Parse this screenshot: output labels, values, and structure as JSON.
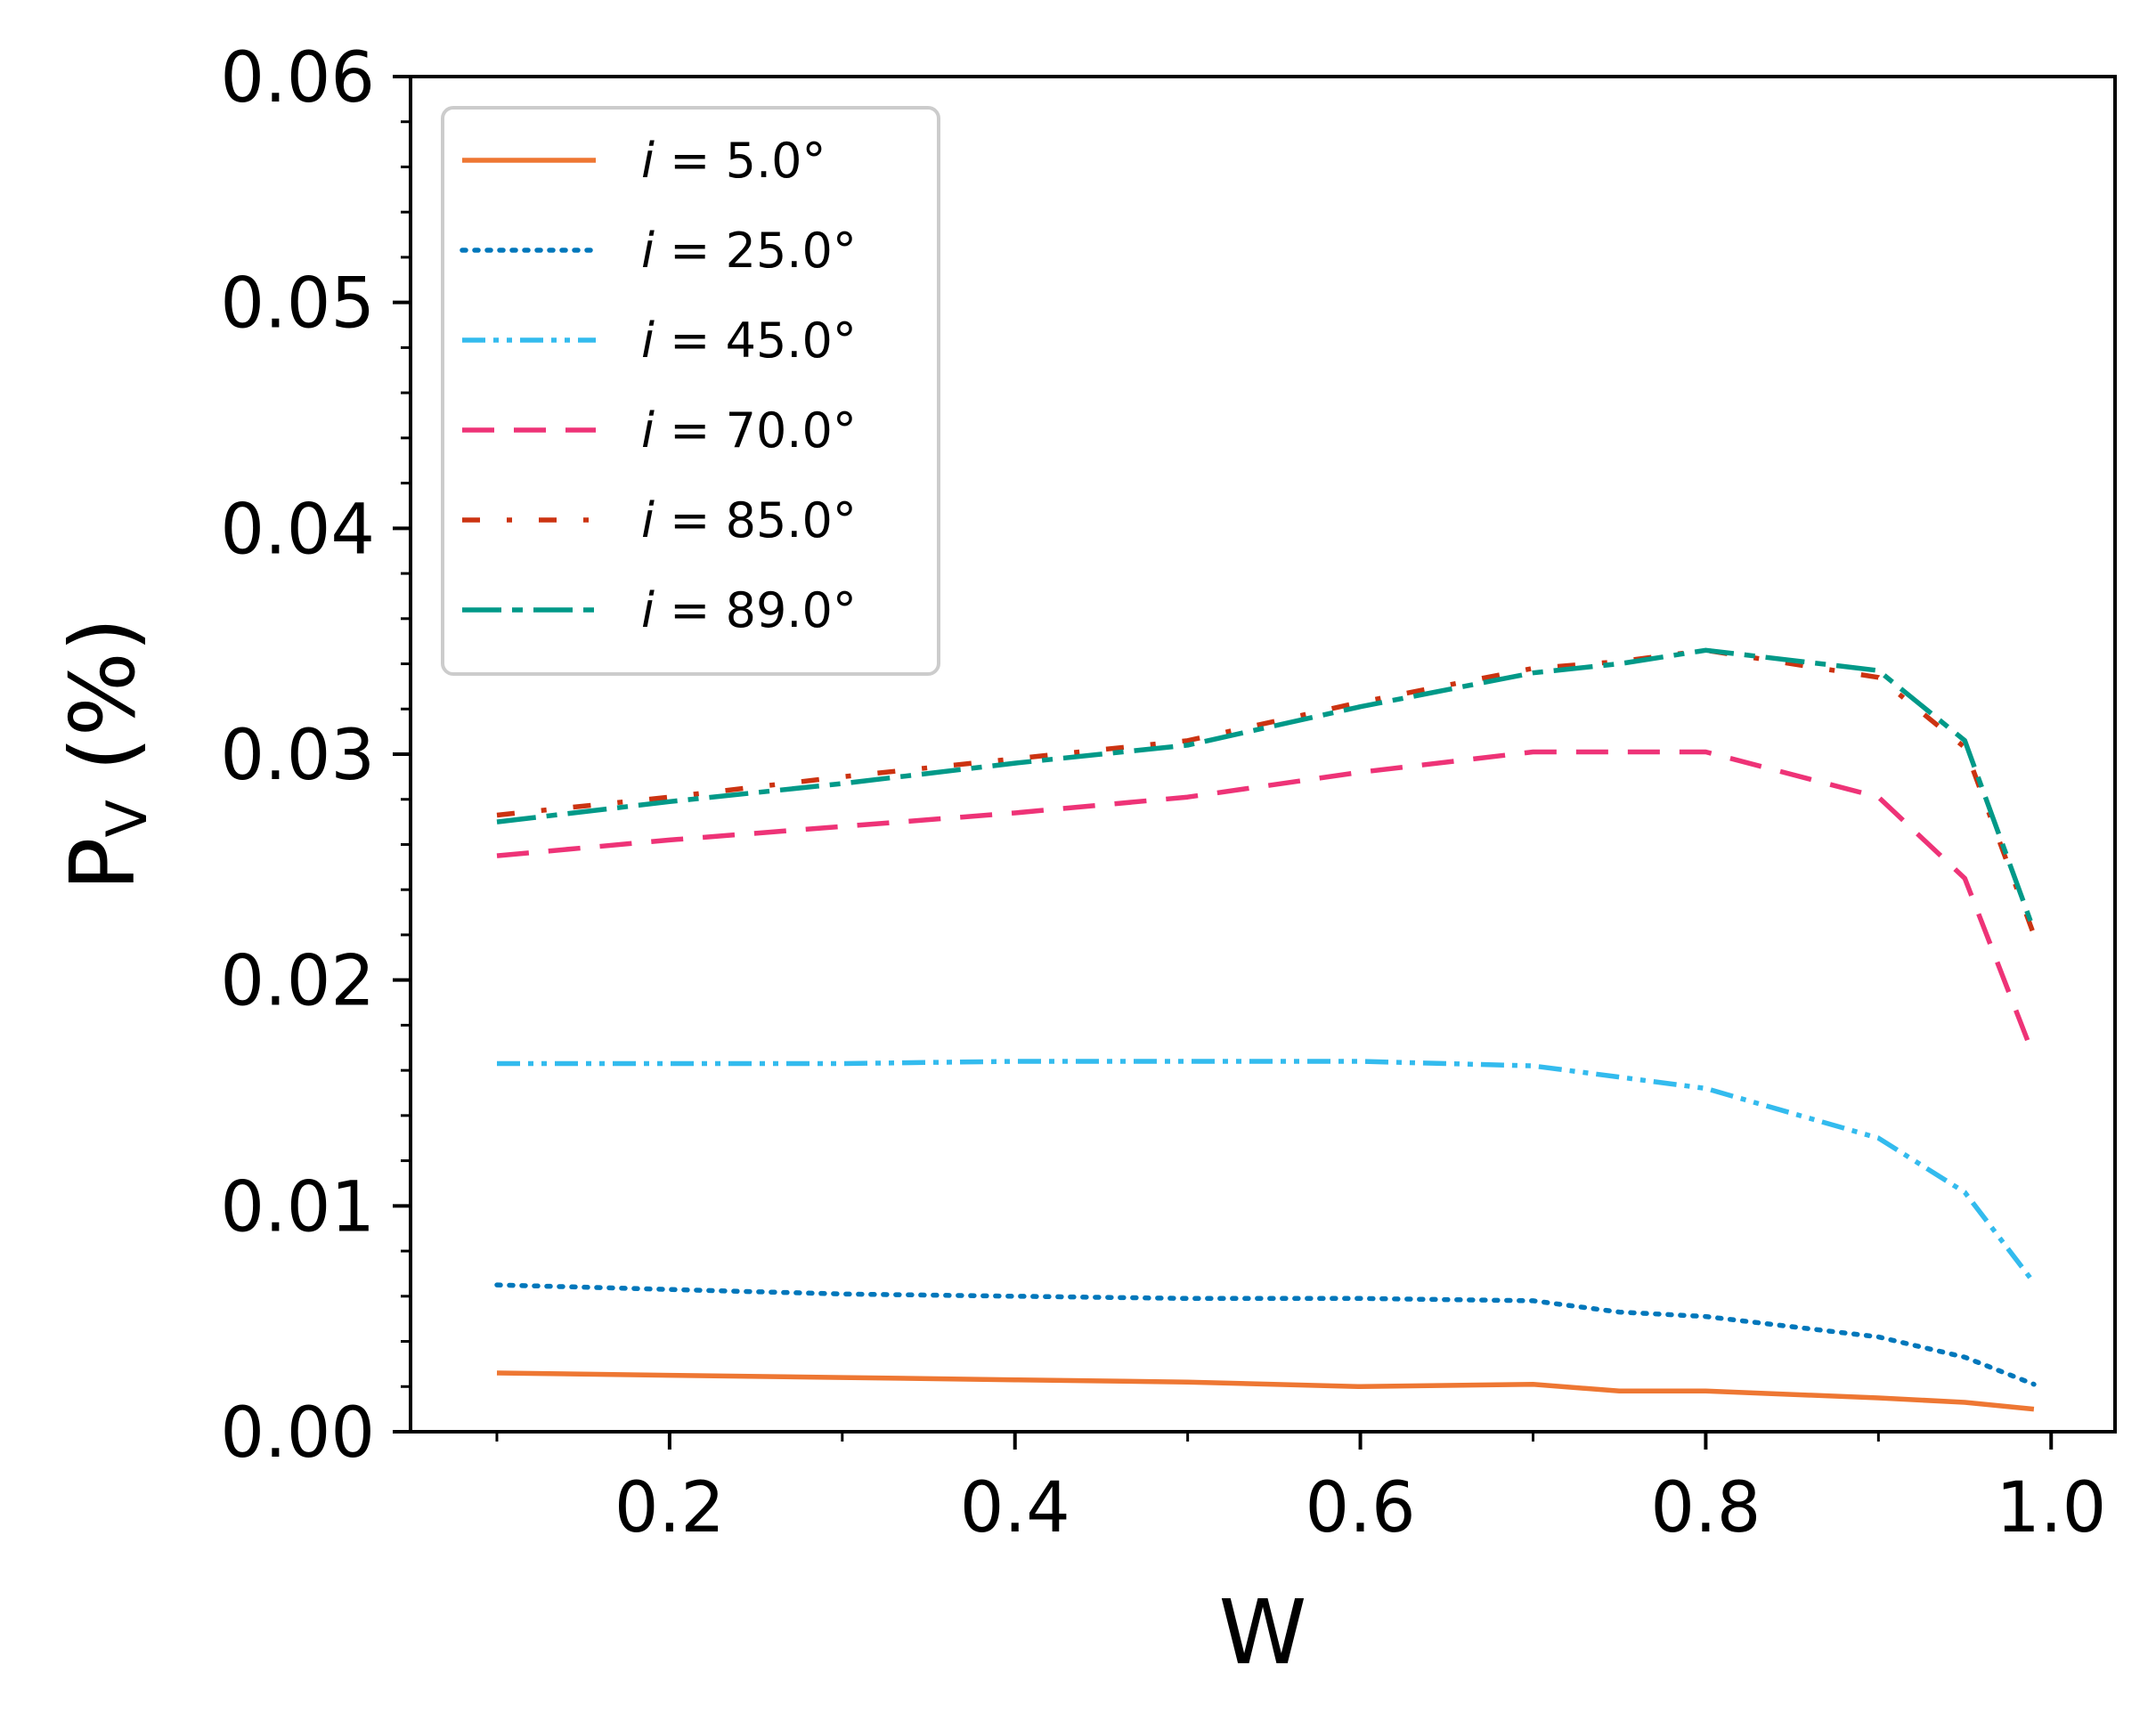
{
  "chart_data": {
    "type": "line",
    "title": "",
    "xlabel": "W",
    "ylabel": {
      "base": "P",
      "sub": "V",
      "suffix": " (%)"
    },
    "xlim": [
      0.05,
      1.037
    ],
    "ylim": [
      0.0,
      0.06
    ],
    "xticks": [
      0.2,
      0.4,
      0.6,
      0.8,
      1.0
    ],
    "xtick_labels": [
      "0.2",
      "0.4",
      "0.6",
      "0.8",
      "1.0"
    ],
    "yticks": [
      0.0,
      0.01,
      0.02,
      0.03,
      0.04,
      0.05,
      0.06
    ],
    "ytick_labels": [
      "0.00",
      "0.01",
      "0.02",
      "0.03",
      "0.04",
      "0.05",
      "0.06"
    ],
    "grid": false,
    "legend_position": "top-left",
    "x": [
      0.1,
      0.2,
      0.3,
      0.4,
      0.5,
      0.6,
      0.7,
      0.75,
      0.8,
      0.9,
      0.95,
      0.99
    ],
    "series": [
      {
        "name": "i = 5.0°",
        "var": "i",
        "text": " = 5.0°",
        "color": "#ee7733",
        "style": "solid",
        "values": [
          0.0026,
          0.0025,
          0.0024,
          0.0023,
          0.0022,
          0.002,
          0.0021,
          0.0018,
          0.0018,
          0.0015,
          0.0013,
          0.001
        ]
      },
      {
        "name": "i = 25.0°",
        "var": "i",
        "text": " = 25.0°",
        "color": "#0077bb",
        "style": "dotted",
        "values": [
          0.0065,
          0.0063,
          0.0061,
          0.006,
          0.0059,
          0.0059,
          0.0058,
          0.0053,
          0.0051,
          0.0042,
          0.0033,
          0.0021
        ]
      },
      {
        "name": "i = 45.0°",
        "var": "i",
        "text": " = 45.0°",
        "color": "#33bbee",
        "style": "dashdotdot",
        "values": [
          0.0163,
          0.0163,
          0.0163,
          0.0164,
          0.0164,
          0.0164,
          0.0162,
          0.0157,
          0.0152,
          0.013,
          0.0106,
          0.0066
        ]
      },
      {
        "name": "i = 70.0°",
        "var": "i",
        "text": " = 70.0°",
        "color": "#ee3377",
        "style": "dashed",
        "values": [
          0.0255,
          0.0262,
          0.0268,
          0.0274,
          0.0281,
          0.0292,
          0.0301,
          0.0301,
          0.0301,
          0.0281,
          0.0245,
          0.0166
        ]
      },
      {
        "name": "i = 85.0°",
        "var": "i",
        "text": " = 85.0°",
        "color": "#cc3311",
        "style": "dashdot",
        "values": [
          0.0273,
          0.0281,
          0.029,
          0.0298,
          0.0306,
          0.0323,
          0.0338,
          0.0341,
          0.0346,
          0.0334,
          0.0303,
          0.022
        ]
      },
      {
        "name": "i = 89.0°",
        "var": "i",
        "text": " = 89.0°",
        "color": "#009988",
        "style": "longdash",
        "values": [
          0.027,
          0.0279,
          0.0287,
          0.0296,
          0.0304,
          0.0321,
          0.0336,
          0.034,
          0.0346,
          0.0337,
          0.0306,
          0.0222
        ]
      }
    ]
  }
}
